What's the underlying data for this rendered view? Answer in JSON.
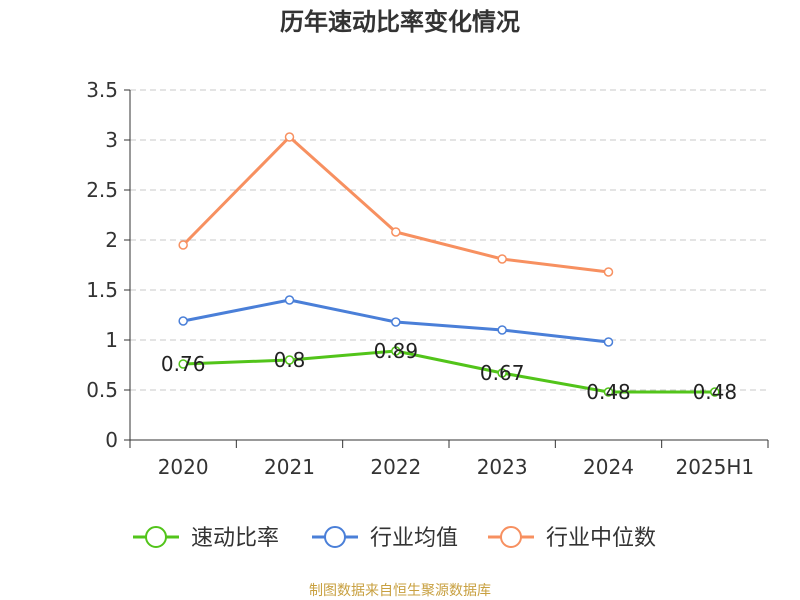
{
  "chart_data": {
    "type": "line",
    "title": "历年速动比率变化情况",
    "categories": [
      "2020",
      "2021",
      "2022",
      "2023",
      "2024",
      "2025H1"
    ],
    "ylim": [
      0,
      3.5
    ],
    "yticks": [
      "0",
      "0.5",
      "1",
      "1.5",
      "2",
      "2.5",
      "3",
      "3.5"
    ],
    "grid": true,
    "legend_position": "bottom",
    "series": [
      {
        "name": "速动比率",
        "color": "#52c41a",
        "values": [
          0.76,
          0.8,
          0.89,
          0.67,
          0.48,
          0.48
        ],
        "labels": [
          "0.76",
          "0.8",
          "0.89",
          "0.67",
          "0.48",
          "0.48"
        ]
      },
      {
        "name": "行业均值",
        "color": "#4a7fd8",
        "values": [
          1.19,
          1.4,
          1.18,
          1.1,
          0.98,
          null
        ]
      },
      {
        "name": "行业中位数",
        "color": "#f79060",
        "values": [
          1.95,
          3.03,
          2.08,
          1.81,
          1.68,
          null
        ]
      }
    ],
    "source": "制图数据来自恒生聚源数据库"
  }
}
